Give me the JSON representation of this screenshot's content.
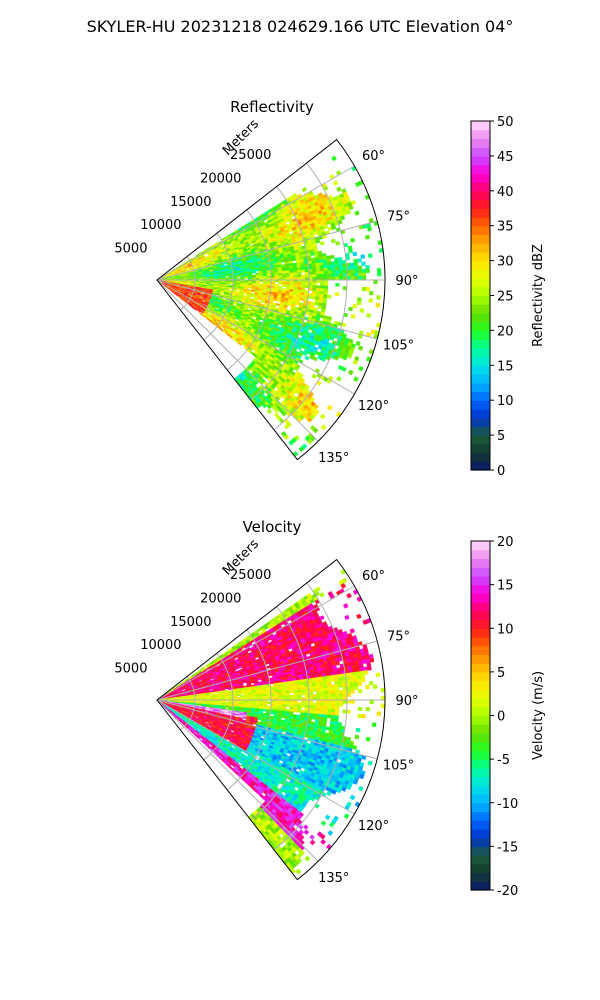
{
  "figure_title": "SKYLER-HU  20231218  024629.166 UTC Elevation 04°",
  "chart_data": [
    {
      "type": "heatmap",
      "projection": "polar-sector",
      "title": "Reflectivity",
      "radial_axis_label": "Meters",
      "radial_ticks": [
        "5000",
        "10000",
        "15000",
        "20000",
        "25000"
      ],
      "radial_tick_values": [
        5000,
        10000,
        15000,
        20000,
        25000
      ],
      "r_max": 30000,
      "azimuth_range_deg": [
        52,
        142
      ],
      "azimuth_ticks": [
        "60°",
        "75°",
        "90°",
        "105°",
        "120°",
        "135°"
      ],
      "azimuth_tick_values": [
        60,
        75,
        90,
        105,
        120,
        135
      ],
      "grid": true,
      "colorbar": {
        "label": "Reflectivity dBZ",
        "min": 0,
        "max": 50,
        "ticks": [
          "0",
          "5",
          "10",
          "15",
          "20",
          "25",
          "30",
          "35",
          "40",
          "45",
          "50"
        ],
        "tick_values": [
          0,
          5,
          10,
          15,
          20,
          25,
          30,
          35,
          40,
          45,
          50
        ]
      },
      "colormap": [
        "#0a1a6e",
        "#133a2e",
        "#1b5e3a",
        "#0033cc",
        "#0066ff",
        "#00b4ff",
        "#00e5e5",
        "#00ff99",
        "#22ff22",
        "#66dd00",
        "#aaff00",
        "#e6ff00",
        "#ffe600",
        "#ffaa00",
        "#ff6600",
        "#ff1a1a",
        "#ff0066",
        "#ff00dd",
        "#c84bff",
        "#ee88ee",
        "#ffe0ff"
      ],
      "dominant_value_range": [
        20,
        32
      ],
      "near_range_core_value": 37
    },
    {
      "type": "heatmap",
      "projection": "polar-sector",
      "title": "Velocity",
      "radial_axis_label": "Meters",
      "radial_ticks": [
        "5000",
        "10000",
        "15000",
        "20000",
        "25000"
      ],
      "radial_tick_values": [
        5000,
        10000,
        15000,
        20000,
        25000
      ],
      "r_max": 30000,
      "azimuth_range_deg": [
        52,
        142
      ],
      "azimuth_ticks": [
        "60°",
        "75°",
        "90°",
        "105°",
        "120°",
        "135°"
      ],
      "azimuth_tick_values": [
        60,
        75,
        90,
        105,
        120,
        135
      ],
      "grid": true,
      "colorbar": {
        "label": "Velocity (m/s)",
        "min": -20,
        "max": 20,
        "ticks": [
          "-20",
          "-15",
          "-10",
          "-5",
          "0",
          "5",
          "10",
          "15",
          "20"
        ],
        "tick_values": [
          -20,
          -15,
          -10,
          -5,
          0,
          5,
          10,
          15,
          20
        ]
      },
      "colormap": [
        "#0a1a6e",
        "#133a2e",
        "#1b5e3a",
        "#0033cc",
        "#0066ff",
        "#00b4ff",
        "#00e5e5",
        "#00ff99",
        "#22ff22",
        "#66dd00",
        "#aaff00",
        "#e6ff00",
        "#ffe600",
        "#ffaa00",
        "#ff6600",
        "#ff1a1a",
        "#ff0066",
        "#ff00dd",
        "#c84bff",
        "#ee88ee",
        "#ffe0ff"
      ],
      "regions": [
        {
          "azimuth": [
            58,
            82
          ],
          "value": 12
        },
        {
          "azimuth": [
            82,
            95
          ],
          "value": 2
        },
        {
          "azimuth": [
            95,
            104
          ],
          "value": -4
        },
        {
          "azimuth": [
            104,
            118
          ],
          "value": -9
        },
        {
          "azimuth": [
            118,
            130
          ],
          "value": -7
        },
        {
          "azimuth": [
            128,
            136
          ],
          "value": 14
        }
      ]
    }
  ]
}
